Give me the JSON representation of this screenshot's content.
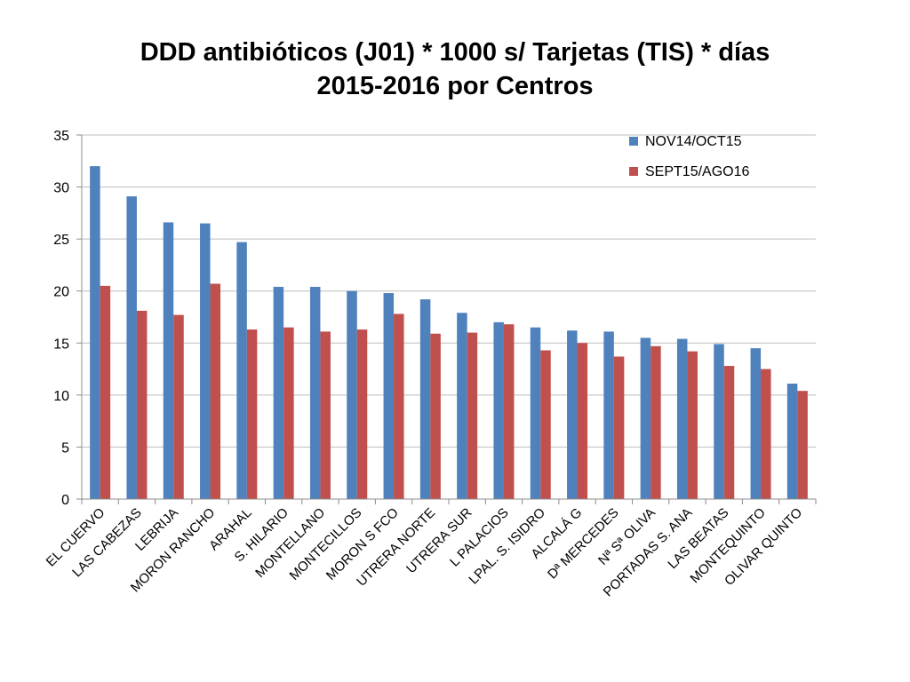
{
  "chart_data": {
    "type": "bar",
    "title_line1": "DDD antibióticos (J01) * 1000 s/ Tarjetas (TIS) * días",
    "title_line2": "2015-2016 por Centros",
    "xlabel": "",
    "ylabel": "",
    "ylim": [
      0,
      35
    ],
    "yticks": [
      0,
      5,
      10,
      15,
      20,
      25,
      30,
      35
    ],
    "grid": true,
    "legend_position": "top-right",
    "categories": [
      "EL CUERVO",
      "LAS CABEZAS",
      "LEBRIJA",
      "MORON RANCHO",
      "ARAHAL",
      "S. HILARIO",
      "MONTELLANO",
      "MONTECILLOS",
      "MORON S FCO",
      "UTRERA NORTE",
      "UTRERA SUR",
      "L PALACIOS",
      "LPAL. S. ISIDRO",
      "ALCALÁ G",
      "Dª MERCEDES",
      "Nª Sª OLIVA",
      "PORTADAS S. ANA",
      "LAS BEATAS",
      "MONTEQUINTO",
      "OLIVAR QUINTO"
    ],
    "series": [
      {
        "name": "NOV14/OCT15",
        "color": "#4F81BD",
        "values": [
          32.0,
          29.1,
          26.6,
          26.5,
          24.7,
          20.4,
          20.4,
          20.0,
          19.8,
          19.2,
          17.9,
          17.0,
          16.5,
          16.2,
          16.1,
          15.5,
          15.4,
          14.9,
          14.5,
          11.1
        ]
      },
      {
        "name": "SEPT15/AGO16",
        "color": "#C0504D",
        "values": [
          20.5,
          18.1,
          17.7,
          20.7,
          16.3,
          16.5,
          16.1,
          16.3,
          17.8,
          15.9,
          16.0,
          16.8,
          14.3,
          15.0,
          13.7,
          14.7,
          14.2,
          12.8,
          12.5,
          10.4
        ]
      }
    ]
  }
}
